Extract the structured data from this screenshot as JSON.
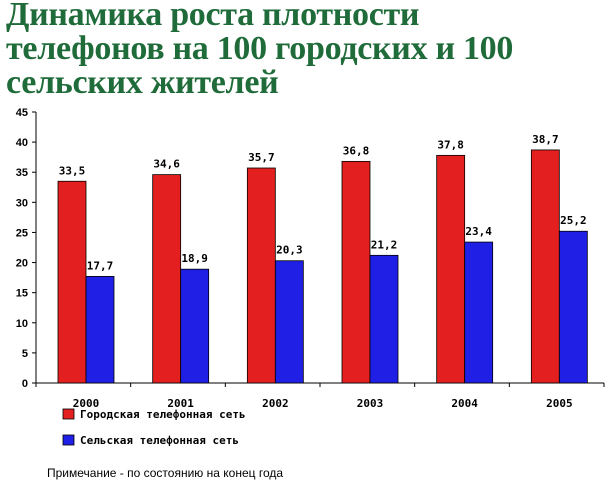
{
  "title_lines": [
    "Динамика роста плотности",
    "телефонов на 100 городских и 100",
    "сельских жителей"
  ],
  "note": "Примечание - по состоянию на конец года",
  "colors": {
    "title": "#1f6b3a",
    "urban": "#e41f1f",
    "rural": "#1f1fe6"
  },
  "chart_data": {
    "type": "bar",
    "categories": [
      "2000",
      "2001",
      "2002",
      "2003",
      "2004",
      "2005"
    ],
    "series": [
      {
        "name": "Городская телефонная сеть",
        "values": [
          33.5,
          34.6,
          35.7,
          36.8,
          37.8,
          38.7
        ],
        "labels": [
          "33,5",
          "34,6",
          "35,7",
          "36,8",
          "37,8",
          "38,7"
        ],
        "color": "#e41f1f"
      },
      {
        "name": "Сельская телефонная сеть",
        "values": [
          17.7,
          18.9,
          20.3,
          21.2,
          23.4,
          25.2
        ],
        "labels": [
          "17,7",
          "18,9",
          "20,3",
          "21,2",
          "23,4",
          "25,2"
        ],
        "color": "#1f1fe6"
      }
    ],
    "y_ticks": [
      "0",
      "5",
      "10",
      "15",
      "20",
      "25",
      "30",
      "35",
      "40",
      "45"
    ],
    "ylim": [
      0,
      45
    ],
    "grid": false,
    "legend": "bottom-left"
  }
}
